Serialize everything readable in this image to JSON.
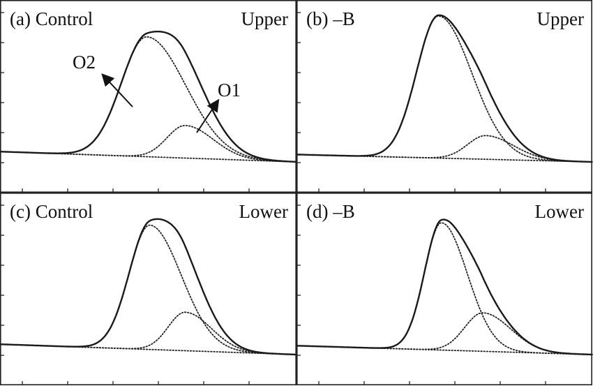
{
  "chart_data": [
    {
      "type": "line",
      "panel_label": "(a)  Control",
      "corner_label": "Upper",
      "annotations": [
        "O2",
        "O1"
      ],
      "xlim": [
        0,
        1
      ],
      "ylim": [
        0,
        1
      ],
      "series": [
        {
          "kind": "peak",
          "center": 0.495,
          "width": 0.105,
          "amplitude": 0.81,
          "skew": 1.0
        },
        {
          "kind": "peak",
          "center": 0.625,
          "width": 0.075,
          "amplitude": 0.22,
          "skew": 1.0
        },
        {
          "kind": "baseline",
          "start": 0.07,
          "end": 0.0
        }
      ]
    },
    {
      "type": "line",
      "panel_label": "(b)  –B",
      "corner_label": "Upper",
      "xlim": [
        0,
        1
      ],
      "ylim": [
        0,
        1
      ],
      "series": [
        {
          "kind": "peak",
          "center": 0.48,
          "width": 0.09,
          "amplitude": 0.96,
          "skew": 1.0
        },
        {
          "kind": "peak",
          "center": 0.64,
          "width": 0.075,
          "amplitude": 0.16,
          "skew": 1.0
        },
        {
          "kind": "baseline",
          "start": 0.05,
          "end": 0.0
        }
      ]
    },
    {
      "type": "line",
      "panel_label": "(c)  Control",
      "corner_label": "Lower",
      "xlim": [
        0,
        1
      ],
      "ylim": [
        0,
        1
      ],
      "series": [
        {
          "kind": "peak",
          "center": 0.505,
          "width": 0.085,
          "amplitude": 0.84,
          "skew": 1.0
        },
        {
          "kind": "peak",
          "center": 0.625,
          "width": 0.07,
          "amplitude": 0.26,
          "skew": 1.0
        },
        {
          "kind": "baseline",
          "start": 0.07,
          "end": 0.0
        }
      ]
    },
    {
      "type": "line",
      "panel_label": "(d)  –B",
      "corner_label": "Lower",
      "xlim": [
        0,
        1
      ],
      "ylim": [
        0,
        1
      ],
      "series": [
        {
          "kind": "peak",
          "center": 0.49,
          "width": 0.07,
          "amplitude": 0.86,
          "skew": 1.0
        },
        {
          "kind": "peak",
          "center": 0.63,
          "width": 0.075,
          "amplitude": 0.26,
          "skew": 1.0
        },
        {
          "kind": "baseline",
          "start": 0.06,
          "end": 0.0
        }
      ]
    }
  ]
}
